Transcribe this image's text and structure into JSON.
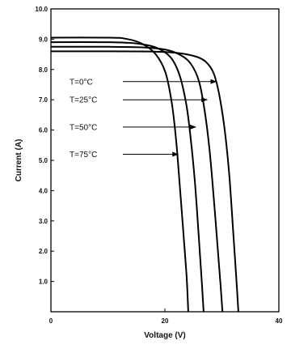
{
  "chart_data": {
    "type": "line",
    "xlabel": "Voltage (V)",
    "ylabel": "Current (A)",
    "xlim": [
      0,
      40
    ],
    "ylim": [
      0,
      10
    ],
    "x_ticks": [
      0,
      20,
      40
    ],
    "x_tick_labels": [
      "0",
      "20",
      "40"
    ],
    "y_ticks": [
      1,
      2,
      3,
      4,
      5,
      6,
      7,
      8,
      9,
      10
    ],
    "y_tick_labels": [
      "1.0",
      "2.0",
      "3.0",
      "4.0",
      "5.0",
      "6.0",
      "7.0",
      "8.0",
      "9.0",
      "10.0"
    ],
    "grid": false,
    "legend": "none",
    "series_color": "#000000",
    "series": [
      {
        "label": "T=0°C",
        "points": [
          [
            0,
            8.6
          ],
          [
            10,
            8.6
          ],
          [
            18,
            8.59
          ],
          [
            22,
            8.55
          ],
          [
            25,
            8.45
          ],
          [
            27,
            8.28
          ],
          [
            28.5,
            7.9
          ],
          [
            29.5,
            7.2
          ],
          [
            30.5,
            6.0
          ],
          [
            31.3,
            4.5
          ],
          [
            32.0,
            2.6
          ],
          [
            32.5,
            1.2
          ],
          [
            32.9,
            0.0
          ]
        ],
        "annotation_point": [
          29,
          7.6
        ]
      },
      {
        "label": "T=25°C",
        "points": [
          [
            0,
            8.75
          ],
          [
            10,
            8.75
          ],
          [
            16,
            8.73
          ],
          [
            20,
            8.66
          ],
          [
            22.5,
            8.5
          ],
          [
            24.5,
            8.2
          ],
          [
            26,
            7.6
          ],
          [
            27,
            6.6
          ],
          [
            27.8,
            5.4
          ],
          [
            28.6,
            3.7
          ],
          [
            29.3,
            2.0
          ],
          [
            29.8,
            0.8
          ],
          [
            30.1,
            0.0
          ]
        ],
        "annotation_point": [
          27.4,
          7.0
        ]
      },
      {
        "label": "T=50°C",
        "points": [
          [
            0,
            8.9
          ],
          [
            10,
            8.9
          ],
          [
            15,
            8.86
          ],
          [
            18.5,
            8.72
          ],
          [
            21,
            8.4
          ],
          [
            22.6,
            7.8
          ],
          [
            23.8,
            6.8
          ],
          [
            24.6,
            5.6
          ],
          [
            25.3,
            4.2
          ],
          [
            25.9,
            2.6
          ],
          [
            26.4,
            1.2
          ],
          [
            26.8,
            0.0
          ]
        ],
        "annotation_point": [
          25.4,
          6.1
        ]
      },
      {
        "label": "T=75°C",
        "points": [
          [
            0,
            9.05
          ],
          [
            10,
            9.05
          ],
          [
            13,
            9.02
          ],
          [
            16,
            8.85
          ],
          [
            18.4,
            8.5
          ],
          [
            20.1,
            7.9
          ],
          [
            21.2,
            6.9
          ],
          [
            22.0,
            5.6
          ],
          [
            22.6,
            4.2
          ],
          [
            23.2,
            2.7
          ],
          [
            23.8,
            1.2
          ],
          [
            24.1,
            0.0
          ]
        ],
        "annotation_point": [
          22.3,
          5.2
        ]
      }
    ]
  }
}
